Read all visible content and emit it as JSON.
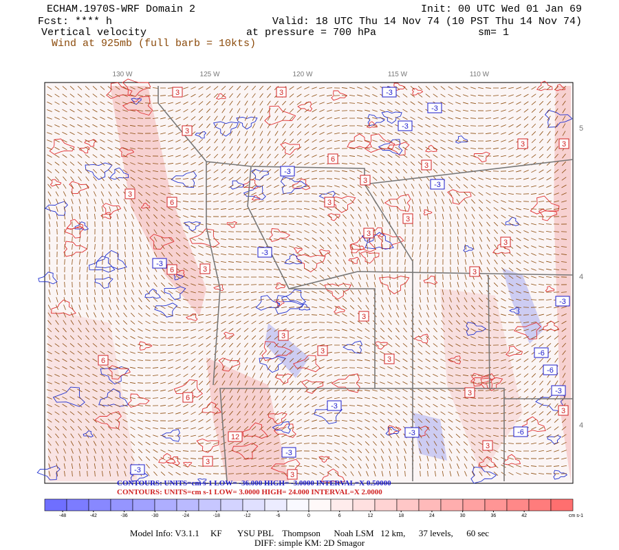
{
  "header": {
    "title": "ECHAM.1970S-WRF Domain 2",
    "init": "Init: 00 UTC Wed 01 Jan 69",
    "fcst": "Fcst: **** h",
    "valid": "Valid: 18 UTC Thu 14 Nov 74 (10 PST Thu 14 Nov 74)",
    "field": "Vertical velocity",
    "level": "at pressure =  700 hPa",
    "smooth": "sm= 1",
    "wind": "Wind at 925mb (full barb = 10kts)"
  },
  "map": {
    "lon_labels": [
      "130 W",
      "125 W",
      "120 W",
      "115 W",
      "110 W"
    ],
    "lat_labels": [
      "5",
      "4",
      "4"
    ],
    "contour_labels": [
      "3",
      "3",
      "-3",
      "-3",
      "-3",
      "3",
      "3",
      "3",
      "6",
      "-3",
      "3",
      "3",
      "-3",
      "3",
      "6",
      "3",
      "3",
      "3",
      "3",
      "-3",
      "6",
      "3",
      "-3",
      "3",
      "-3",
      "3",
      "3",
      "3",
      "3",
      "-6",
      "-6",
      "6",
      "3",
      "-3",
      "-3",
      "-3",
      "-6",
      "12",
      "-3",
      "3",
      "-3",
      "3",
      "6",
      "3",
      "3"
    ]
  },
  "contours": {
    "negative": "CONTOURS:  UNITS=cm s-1  LOW= -36.000      HIGH= -3.0000      INTERVAL=X 0.50000",
    "positive": "CONTOURS:  UNITS=cm s-1  LOW=  3.0000      HIGH=  24.000      INTERVAL=X  2.0000"
  },
  "colorbar": {
    "lim": [
      -51.5,
      51.5
    ],
    "ticks": [
      -48,
      -42,
      -36,
      -30,
      -24,
      -18,
      -12,
      -6,
      0,
      6,
      12,
      18,
      24,
      30,
      36,
      42
    ],
    "unit": "cm s-1"
  },
  "footer": {
    "model": "Model Info: V3.1.1     KF       YSU PBL    Thompson      Noah LSM   12 km,      37 levels,      60 sec",
    "diff": "DIFF: simple KM: 2D Smagor"
  }
}
